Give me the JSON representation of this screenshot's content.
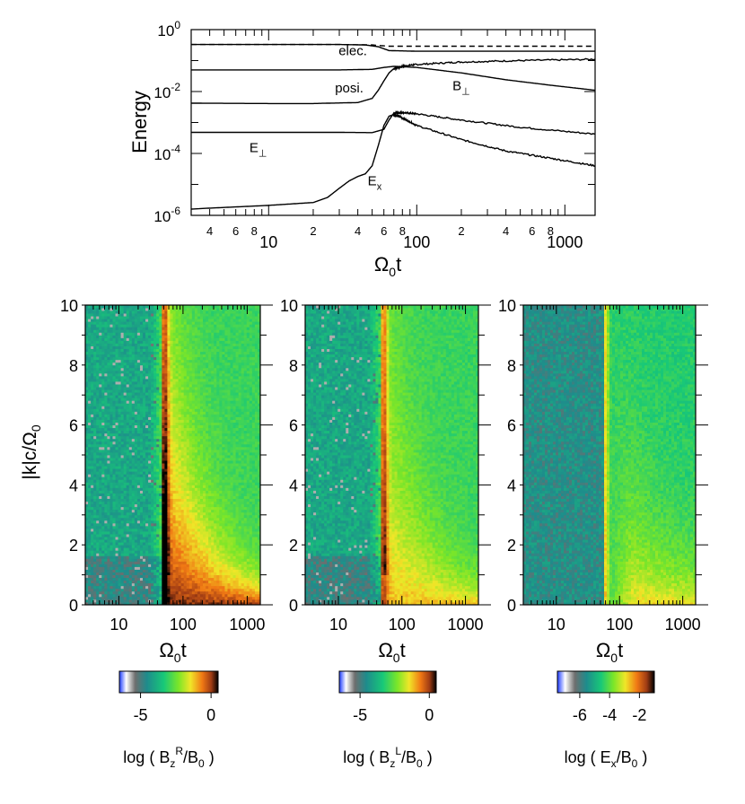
{
  "chart_data": [
    {
      "type": "line",
      "scale": "log-log",
      "title": "",
      "xlabel": "Ω0t",
      "ylabel": "Energy",
      "xlim": [
        3,
        1600
      ],
      "ylim_exp": [
        -6,
        0
      ],
      "x_major_ticks": [
        {
          "value": 10,
          "label": "10"
        },
        {
          "value": 100,
          "label": "100"
        },
        {
          "value": 1000,
          "label": "1000"
        }
      ],
      "x_minor_labels": [
        {
          "value": 4,
          "label": "4"
        },
        {
          "value": 6,
          "label": "6"
        },
        {
          "value": 8,
          "label": "8"
        },
        {
          "value": 20,
          "label": "2"
        },
        {
          "value": 40,
          "label": "4"
        },
        {
          "value": 60,
          "label": "6"
        },
        {
          "value": 80,
          "label": "8"
        },
        {
          "value": 200,
          "label": "2"
        },
        {
          "value": 400,
          "label": "4"
        },
        {
          "value": 600,
          "label": "6"
        },
        {
          "value": 800,
          "label": "8"
        }
      ],
      "y_ticks": [
        {
          "exp": 0,
          "base": "10",
          "sup": "0"
        },
        {
          "exp": -2,
          "base": "10",
          "sup": "-2"
        },
        {
          "exp": -4,
          "base": "10",
          "sup": "-4"
        },
        {
          "exp": -6,
          "base": "10",
          "sup": "-6"
        }
      ],
      "series": [
        {
          "name": "elec.",
          "dashed": true,
          "x": [
            3,
            30,
            50,
            65,
            100,
            1600
          ],
          "y": [
            0.33,
            0.33,
            0.32,
            0.29,
            0.29,
            0.29
          ]
        },
        {
          "name": "elec.",
          "dashed": false,
          "x": [
            3,
            30,
            45,
            55,
            65,
            100,
            300,
            1600
          ],
          "y": [
            0.33,
            0.33,
            0.32,
            0.28,
            0.21,
            0.2,
            0.2,
            0.2
          ]
        },
        {
          "name": "B⊥",
          "x": [
            3,
            30,
            50,
            60,
            70,
            100,
            200,
            400,
            800,
            1600
          ],
          "y": [
            0.05,
            0.05,
            0.052,
            0.06,
            0.065,
            0.06,
            0.04,
            0.024,
            0.016,
            0.011
          ]
        },
        {
          "name": "posi.",
          "x": [
            3,
            10,
            20,
            40,
            50,
            55,
            60,
            65,
            70,
            80,
            100,
            200,
            500,
            1600
          ],
          "y": [
            0.0042,
            0.0041,
            0.0041,
            0.0044,
            0.006,
            0.011,
            0.022,
            0.04,
            0.055,
            0.065,
            0.075,
            0.09,
            0.1,
            0.11
          ]
        },
        {
          "name": "E⊥",
          "x": [
            3,
            30,
            50,
            60,
            65,
            70,
            80,
            100,
            200,
            500,
            1600
          ],
          "y": [
            0.00048,
            0.00048,
            0.00047,
            0.0006,
            0.0012,
            0.002,
            0.0021,
            0.0019,
            0.0012,
            0.0007,
            0.00042
          ]
        },
        {
          "name": "Ex",
          "x": [
            3,
            10,
            20,
            25,
            30,
            35,
            40,
            45,
            50,
            55,
            60,
            65,
            70,
            80,
            100,
            200,
            400,
            800,
            1600
          ],
          "y": [
            1.6e-06,
            2.1e-06,
            2.6e-06,
            3.8e-06,
            7.5e-06,
            1.3e-05,
            1.8e-05,
            2.2e-05,
            4e-05,
            0.00018,
            0.0008,
            0.0016,
            0.0018,
            0.0014,
            0.0008,
            0.00028,
            0.00012,
            7e-05,
            4e-05
          ]
        }
      ],
      "annotations": [
        {
          "base": "elec.",
          "sub": "",
          "x": 37,
          "y": 0.15
        },
        {
          "base": "posi.",
          "sub": "",
          "x": 35,
          "y": 0.0095
        },
        {
          "base": "B",
          "sub": "⊥",
          "x": 200,
          "y": 0.011
        },
        {
          "base": "E",
          "sub": "⊥",
          "x": 8.5,
          "y": 0.00011
        },
        {
          "base": "E",
          "sub": "x",
          "x": 52,
          "y": 9.5e-06
        }
      ]
    },
    {
      "type": "heatmap",
      "panel": "left",
      "xlabel": "Ω0t",
      "ylabel": "|k|c/Ω0",
      "xlim": [
        3,
        1600
      ],
      "ylim": [
        0,
        10
      ],
      "x_ticks": [
        {
          "value": 10,
          "label": "10"
        },
        {
          "value": 100,
          "label": "100"
        },
        {
          "value": 1000,
          "label": "1000"
        }
      ],
      "y_ticks": [
        0,
        2,
        4,
        6,
        8,
        10
      ],
      "colorbar": {
        "label_pre": "log ( B",
        "label_sub": "z",
        "label_sup": "R",
        "label_post": "/B",
        "label_sub2": "0",
        "label_end": " )",
        "range": [
          -6.5,
          0.5
        ],
        "ticks": [
          {
            "value": -5,
            "label": "-5"
          },
          {
            "value": 0,
            "label": "0"
          }
        ]
      }
    },
    {
      "type": "heatmap",
      "panel": "middle",
      "xlabel": "Ω0t",
      "ylabel": "",
      "xlim": [
        3,
        1600
      ],
      "ylim": [
        0,
        10
      ],
      "x_ticks": [
        {
          "value": 10,
          "label": "10"
        },
        {
          "value": 100,
          "label": "100"
        },
        {
          "value": 1000,
          "label": "1000"
        }
      ],
      "y_ticks": [
        0,
        2,
        4,
        6,
        8,
        10
      ],
      "colorbar": {
        "label_pre": "log ( B",
        "label_sub": "z",
        "label_sup": "L",
        "label_post": "/B",
        "label_sub2": "0",
        "label_end": " )",
        "range": [
          -6.5,
          0.5
        ],
        "ticks": [
          {
            "value": -5,
            "label": "-5"
          },
          {
            "value": 0,
            "label": "0"
          }
        ]
      }
    },
    {
      "type": "heatmap",
      "panel": "right",
      "xlabel": "Ω0t",
      "ylabel": "",
      "xlim": [
        3,
        1600
      ],
      "ylim": [
        0,
        10
      ],
      "x_ticks": [
        {
          "value": 10,
          "label": "10"
        },
        {
          "value": 100,
          "label": "100"
        },
        {
          "value": 1000,
          "label": "1000"
        }
      ],
      "y_ticks": [
        0,
        2,
        4,
        6,
        8,
        10
      ],
      "colorbar": {
        "label_pre": "log ( E",
        "label_sub": "x",
        "label_sup": "",
        "label_post": "/B",
        "label_sub2": "0",
        "label_end": " )",
        "range": [
          -7.5,
          -1
        ],
        "ticks": [
          {
            "value": -6,
            "label": "-6"
          },
          {
            "value": -4,
            "label": "-4"
          },
          {
            "value": -2,
            "label": "-2"
          }
        ]
      }
    }
  ]
}
